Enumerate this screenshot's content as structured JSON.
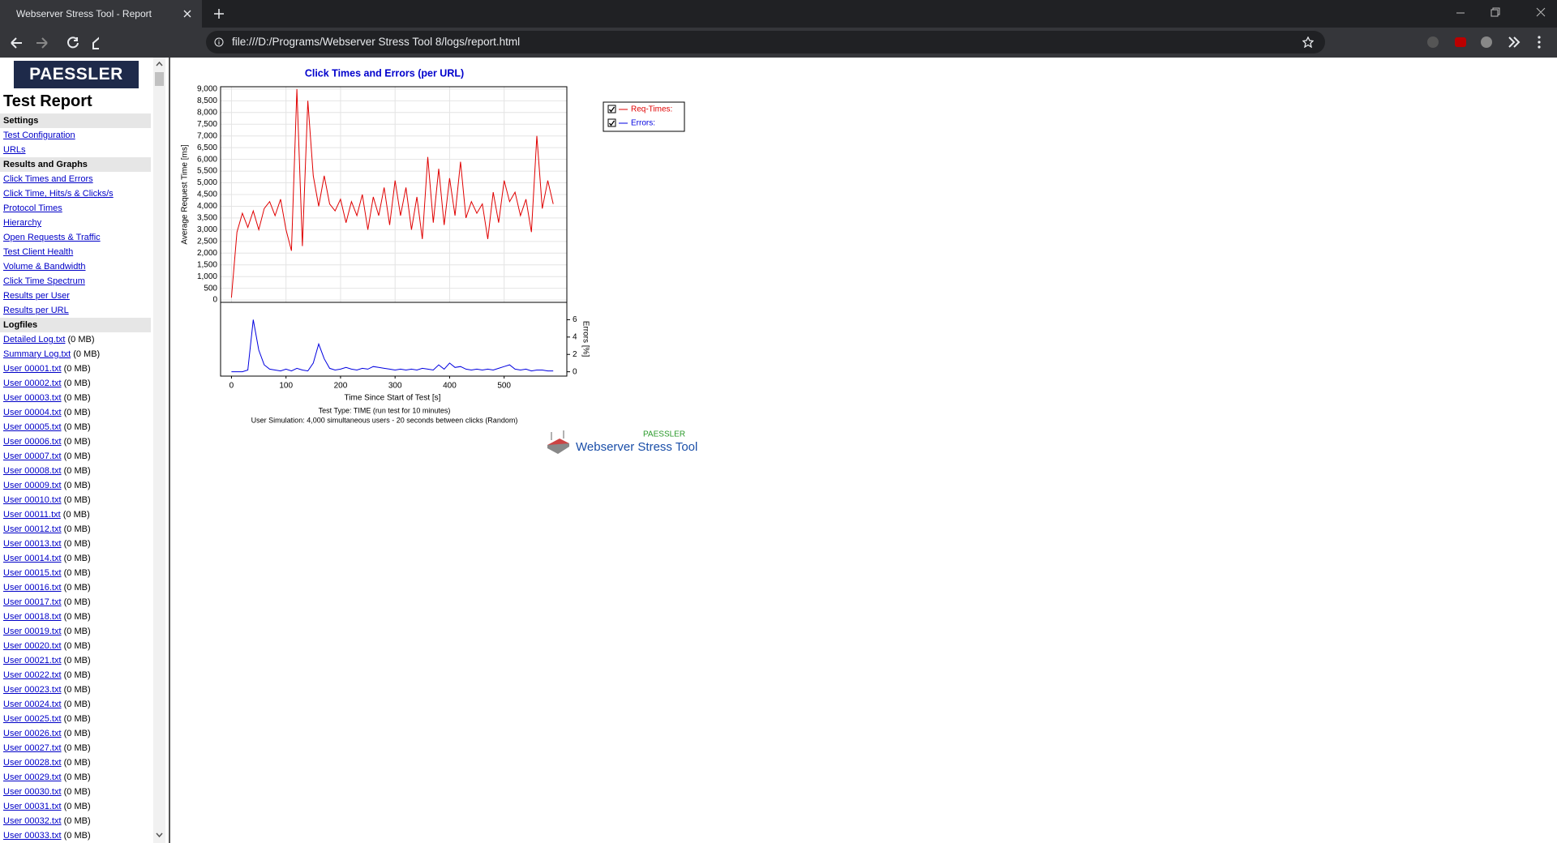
{
  "browser": {
    "tab_title": "Webserver Stress Tool - Report",
    "url": "file:///D:/Programs/Webserver Stress Tool 8/logs/report.html"
  },
  "sidebar": {
    "logo": "PAESSLER",
    "title": "Test Report",
    "sections": [
      {
        "heading": "Settings",
        "links": [
          {
            "name": "Test Configuration"
          },
          {
            "name": "URLs"
          }
        ]
      },
      {
        "heading": "Results and Graphs",
        "links": [
          {
            "name": "Click Times and Errors"
          },
          {
            "name": "Click Time, Hits/s & Clicks/s"
          },
          {
            "name": "Protocol Times"
          },
          {
            "name": "Hierarchy"
          },
          {
            "name": "Open Requests & Traffic"
          },
          {
            "name": "Test Client Health"
          },
          {
            "name": "Volume & Bandwidth"
          },
          {
            "name": "Click Time Spectrum"
          },
          {
            "name": "Results per User"
          },
          {
            "name": "Results per URL"
          }
        ]
      },
      {
        "heading": "Logfiles",
        "links": [
          {
            "name": "Detailed Log.txt",
            "size": "(0 MB)"
          },
          {
            "name": "Summary Log.txt",
            "size": "(0 MB)"
          },
          {
            "name": "User 00001.txt",
            "size": "(0 MB)"
          },
          {
            "name": "User 00002.txt",
            "size": "(0 MB)"
          },
          {
            "name": "User 00003.txt",
            "size": "(0 MB)"
          },
          {
            "name": "User 00004.txt",
            "size": "(0 MB)"
          },
          {
            "name": "User 00005.txt",
            "size": "(0 MB)"
          },
          {
            "name": "User 00006.txt",
            "size": "(0 MB)"
          },
          {
            "name": "User 00007.txt",
            "size": "(0 MB)"
          },
          {
            "name": "User 00008.txt",
            "size": "(0 MB)"
          },
          {
            "name": "User 00009.txt",
            "size": "(0 MB)"
          },
          {
            "name": "User 00010.txt",
            "size": "(0 MB)"
          },
          {
            "name": "User 00011.txt",
            "size": "(0 MB)"
          },
          {
            "name": "User 00012.txt",
            "size": "(0 MB)"
          },
          {
            "name": "User 00013.txt",
            "size": "(0 MB)"
          },
          {
            "name": "User 00014.txt",
            "size": "(0 MB)"
          },
          {
            "name": "User 00015.txt",
            "size": "(0 MB)"
          },
          {
            "name": "User 00016.txt",
            "size": "(0 MB)"
          },
          {
            "name": "User 00017.txt",
            "size": "(0 MB)"
          },
          {
            "name": "User 00018.txt",
            "size": "(0 MB)"
          },
          {
            "name": "User 00019.txt",
            "size": "(0 MB)"
          },
          {
            "name": "User 00020.txt",
            "size": "(0 MB)"
          },
          {
            "name": "User 00021.txt",
            "size": "(0 MB)"
          },
          {
            "name": "User 00022.txt",
            "size": "(0 MB)"
          },
          {
            "name": "User 00023.txt",
            "size": "(0 MB)"
          },
          {
            "name": "User 00024.txt",
            "size": "(0 MB)"
          },
          {
            "name": "User 00025.txt",
            "size": "(0 MB)"
          },
          {
            "name": "User 00026.txt",
            "size": "(0 MB)"
          },
          {
            "name": "User 00027.txt",
            "size": "(0 MB)"
          },
          {
            "name": "User 00028.txt",
            "size": "(0 MB)"
          },
          {
            "name": "User 00029.txt",
            "size": "(0 MB)"
          },
          {
            "name": "User 00030.txt",
            "size": "(0 MB)"
          },
          {
            "name": "User 00031.txt",
            "size": "(0 MB)"
          },
          {
            "name": "User 00032.txt",
            "size": "(0 MB)"
          },
          {
            "name": "User 00033.txt",
            "size": "(0 MB)"
          }
        ]
      }
    ]
  },
  "chart_data": {
    "type": "line",
    "title": "Click Times and Errors (per URL)",
    "xlabel": "Time Since Start of Test [s]",
    "ylabel": "Average Request Time [ms]",
    "y2label": "Errors [%]",
    "x": [
      0,
      10,
      20,
      30,
      40,
      50,
      60,
      70,
      80,
      90,
      100,
      110,
      120,
      130,
      140,
      150,
      160,
      170,
      180,
      190,
      200,
      210,
      220,
      230,
      240,
      250,
      260,
      270,
      280,
      290,
      300,
      310,
      320,
      330,
      340,
      350,
      360,
      370,
      380,
      390,
      400,
      410,
      420,
      430,
      440,
      450,
      460,
      470,
      480,
      490,
      500,
      510,
      520,
      530,
      540,
      550,
      560,
      570,
      580,
      590
    ],
    "xlim": [
      -20,
      615
    ],
    "xticks": [
      0,
      100,
      200,
      300,
      400,
      500
    ],
    "ylim": [
      -100,
      9100
    ],
    "yticks": [
      0,
      500,
      {
        "value": 1000,
        "label": "1,000"
      },
      {
        "value": 1500,
        "label": "1,500"
      },
      {
        "value": 2000,
        "label": "2,000"
      },
      {
        "value": 2500,
        "label": "2,500"
      },
      {
        "value": 3000,
        "label": "3,000"
      },
      {
        "value": 3500,
        "label": "3,500"
      },
      {
        "value": 4000,
        "label": "4,000"
      },
      {
        "value": 4500,
        "label": "4,500"
      },
      {
        "value": 5000,
        "label": "5,000"
      },
      {
        "value": 5500,
        "label": "5,500"
      },
      {
        "value": 6000,
        "label": "6,000"
      },
      {
        "value": 6500,
        "label": "6,500"
      },
      {
        "value": 7000,
        "label": "7,000"
      },
      {
        "value": 7500,
        "label": "7,500"
      },
      {
        "value": 8000,
        "label": "8,000"
      },
      {
        "value": 8500,
        "label": "8,500"
      },
      {
        "value": 9000,
        "label": "9,000"
      }
    ],
    "y2lim": [
      -0.5,
      8
    ],
    "y2ticks": [
      0,
      2,
      4,
      6
    ],
    "grid": true,
    "legend": "right",
    "series": [
      {
        "name": "Req-Times:",
        "color": "#e00000",
        "values": [
          100,
          2900,
          3700,
          3100,
          3800,
          3000,
          3900,
          4200,
          3600,
          4300,
          3000,
          2100,
          9000,
          2300,
          8500,
          5300,
          4000,
          5300,
          4100,
          3800,
          4300,
          3300,
          4200,
          3600,
          4500,
          3000,
          4400,
          3600,
          4800,
          3200,
          5100,
          3600,
          4800,
          3000,
          4400,
          2600,
          6100,
          3300,
          5600,
          3200,
          5200,
          3600,
          5900,
          3500,
          4200,
          3700,
          4100,
          2600,
          4600,
          3300,
          5100,
          4200,
          4600,
          3600,
          4300,
          2900,
          7000,
          3900,
          5100,
          4100
        ]
      },
      {
        "name": "Errors:",
        "color": "#0000e0",
        "axis": "y2",
        "values": [
          0,
          0,
          0,
          0.2,
          6,
          2.5,
          0.8,
          0.3,
          0.2,
          0.1,
          0.3,
          0.1,
          0.4,
          0.2,
          0.1,
          1,
          3.2,
          1.5,
          0.4,
          0.2,
          0.3,
          0.5,
          0.3,
          0.2,
          0.4,
          0.3,
          0.6,
          0.5,
          0.4,
          0.3,
          0.2,
          0.3,
          0.2,
          0.3,
          0.2,
          0.4,
          0.3,
          0.2,
          0.8,
          0.3,
          1,
          0.5,
          0.6,
          0.3,
          0.2,
          0.3,
          0.2,
          0.3,
          0.2,
          0.4,
          0.6,
          0.8,
          0.3,
          0.2,
          0.3,
          0.1,
          0.2,
          0.2,
          0.1,
          0.1
        ]
      }
    ],
    "notes": [
      "Test Type: TIME (run test for 10 minutes)",
      "User Simulation: 4,000 simultaneous users - 20 seconds between clicks (Random)"
    ],
    "footer": {
      "brand": "PAESSLER",
      "product": "Webserver Stress Tool"
    }
  }
}
